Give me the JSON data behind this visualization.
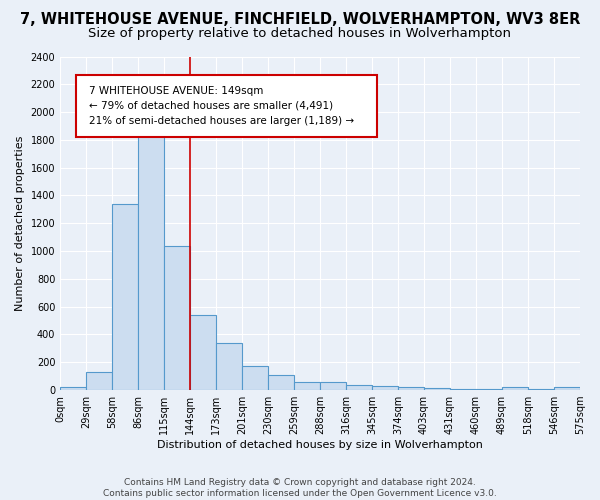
{
  "title": "7, WHITEHOUSE AVENUE, FINCHFIELD, WOLVERHAMPTON, WV3 8ER",
  "subtitle": "Size of property relative to detached houses in Wolverhampton",
  "xlabel": "Distribution of detached houses by size in Wolverhampton",
  "ylabel": "Number of detached properties",
  "bar_values": [
    20,
    130,
    1340,
    1890,
    1040,
    540,
    340,
    170,
    110,
    60,
    55,
    35,
    30,
    20,
    15,
    10,
    5,
    20,
    5,
    20
  ],
  "bar_labels": [
    "0sqm",
    "29sqm",
    "58sqm",
    "86sqm",
    "115sqm",
    "144sqm",
    "173sqm",
    "201sqm",
    "230sqm",
    "259sqm",
    "288sqm",
    "316sqm",
    "345sqm",
    "374sqm",
    "403sqm",
    "431sqm",
    "460sqm",
    "489sqm",
    "518sqm",
    "546sqm",
    "575sqm"
  ],
  "bar_color": "#ccddf0",
  "bar_edgecolor": "#5599cc",
  "bar_linewidth": 0.8,
  "vline_x": 5.0,
  "vline_color": "#cc0000",
  "vline_linewidth": 1.2,
  "annotation_line1": "7 WHITEHOUSE AVENUE: 149sqm",
  "annotation_line2": "← 79% of detached houses are smaller (4,491)",
  "annotation_line3": "21% of semi-detached houses are larger (1,189) →",
  "annotation_edgecolor": "#cc0000",
  "ylim": [
    0,
    2400
  ],
  "yticks": [
    0,
    200,
    400,
    600,
    800,
    1000,
    1200,
    1400,
    1600,
    1800,
    2000,
    2200,
    2400
  ],
  "footnote_line1": "Contains HM Land Registry data © Crown copyright and database right 2024.",
  "footnote_line2": "Contains public sector information licensed under the Open Government Licence v3.0.",
  "bg_color": "#eaf0f8",
  "plot_bg_color": "#eaf0f8",
  "title_fontsize": 10.5,
  "subtitle_fontsize": 9.5,
  "label_fontsize": 8,
  "tick_fontsize": 7,
  "footnote_fontsize": 6.5
}
